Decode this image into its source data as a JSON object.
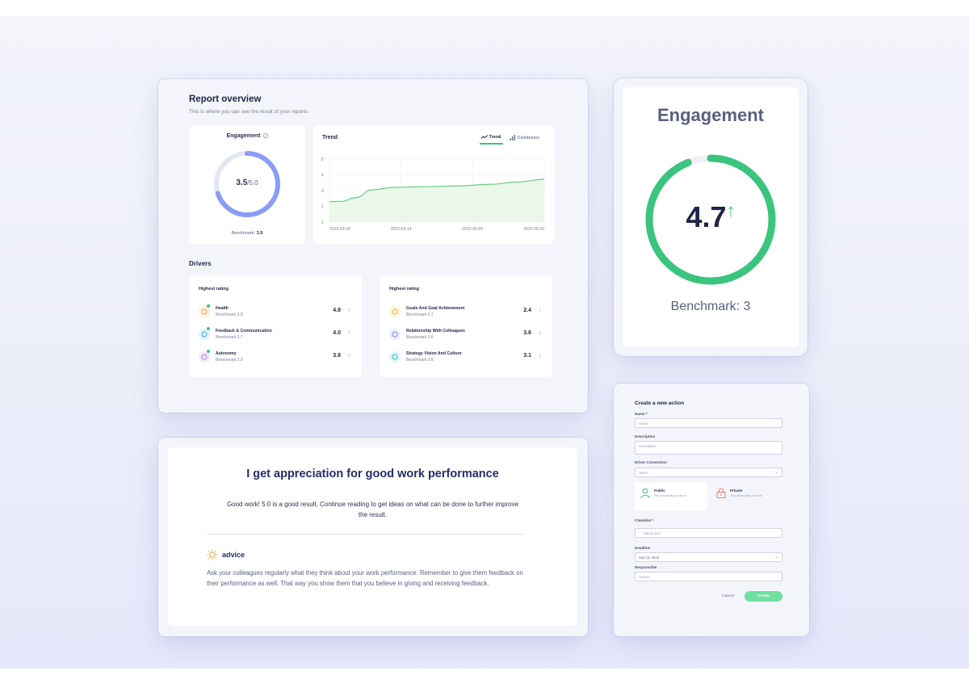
{
  "report": {
    "title": "Report overview",
    "subtitle": "This is where you can see the result of your reports",
    "engagement": {
      "title": "Engagement",
      "value": "3.5",
      "max": "/5.0",
      "benchmark_label": "Benchmark:",
      "benchmark_value": "3.9",
      "ring_fraction": 0.7,
      "ring_color": "#8b9cf7",
      "track_color": "#e4e7f2"
    },
    "trend": {
      "title": "Trend",
      "tabs": [
        {
          "label": "Trend",
          "icon": "trend-line-icon",
          "active": true
        },
        {
          "label": "Distribution",
          "icon": "bar-chart-icon",
          "active": false
        }
      ]
    },
    "drivers_title": "Drivers",
    "drivers": [
      {
        "heading": "Highest rating",
        "items": [
          {
            "name": "Health",
            "benchmark": "Benchmark 3.8",
            "score": "4.8",
            "direction": "up",
            "icon": "heart-icon",
            "color": "#f6a14a",
            "bg": "#fff0e0"
          },
          {
            "name": "Feedback & Communication",
            "benchmark": "Benchmark 3.7",
            "score": "4.0",
            "direction": "up",
            "icon": "chat-icon",
            "color": "#3fa9d6",
            "bg": "#e2f3fb"
          },
          {
            "name": "Autonomy",
            "benchmark": "Benchmark 3.9",
            "score": "3.8",
            "direction": "up",
            "icon": "star-burst-icon",
            "color": "#a97cf0",
            "bg": "#f1eafd"
          }
        ]
      },
      {
        "heading": "Highest rating",
        "items": [
          {
            "name": "Goals And Goal Achievement",
            "benchmark": "Benchmark 3.7",
            "score": "2.4",
            "direction": "down",
            "icon": "trophy-icon",
            "color": "#f2b531",
            "bg": "#fff6dc"
          },
          {
            "name": "Relationship With Colleagues",
            "benchmark": "Benchmark 3.6",
            "score": "3.6",
            "direction": "down",
            "icon": "people-icon",
            "color": "#7c8cf2",
            "bg": "#eceffd"
          },
          {
            "name": "Strategy Vision And Culture",
            "benchmark": "Benchmark 3.8",
            "score": "3.1",
            "direction": "down",
            "icon": "lighthouse-icon",
            "color": "#3fb8c8",
            "bg": "#e0f6f8"
          }
        ]
      }
    ],
    "arrows": {
      "up": "↑",
      "down": "↓"
    }
  },
  "chart_data": {
    "type": "area",
    "title": "Trend",
    "x": [
      "2022-03-24",
      "2022-04-14",
      "2022-05-05",
      "2022-05-23"
    ],
    "x_ticks": [
      "2022-03-24",
      "2022-04-14",
      "2022-05-05",
      "2022-05-23"
    ],
    "series": [
      {
        "values": [
          [
            0.0,
            2.3
          ],
          [
            0.06,
            2.32
          ],
          [
            0.12,
            2.55
          ],
          [
            0.2,
            3.05
          ],
          [
            0.3,
            3.2
          ],
          [
            0.45,
            3.25
          ],
          [
            0.6,
            3.3
          ],
          [
            0.75,
            3.4
          ],
          [
            0.88,
            3.55
          ],
          [
            1.0,
            3.72
          ]
        ]
      }
    ],
    "ylim": [
      1,
      5
    ],
    "y_ticks": [
      1,
      2,
      3,
      4,
      5
    ],
    "grid": true,
    "line_color": "#59c97a",
    "fill_color": "#e6f6e3"
  },
  "engagement_big": {
    "title": "Engagement",
    "value": "4.7",
    "arrow": "↑",
    "benchmark": "Benchmark: 3",
    "ring_fraction": 0.94,
    "ring_color": "#3ac47d",
    "track_color": "#f0f1f6"
  },
  "statement": {
    "title": "I get appreciation for good work performance",
    "description": "Good work! 5.0 is a good result. Continue reading to get ideas on what can be done to further improve the result.",
    "advice_label": "advice",
    "advice_icon": "lightbulb-icon",
    "advice_text": "Ask your colleagues regularly what they think about your work performance. Remember to give them feedback on their performance as well. That way you show them that you believe in giving and receiving feedback."
  },
  "action_form": {
    "title": "Create a new action",
    "name_label": "Name *",
    "name_placeholder": "Name",
    "description_label": "Description",
    "description_placeholder": "Description",
    "driver_label": "Driver Connection",
    "driver_value": "Select",
    "visibility": [
      {
        "name": "Public",
        "sub": "Text depending on level",
        "icon": "user-icon",
        "color": "#3ac47d",
        "selected": true
      },
      {
        "name": "Private",
        "sub": "Text depending on level",
        "icon": "lock-icon",
        "color": "#ee7a6a",
        "selected": false
      }
    ],
    "checklist_label": "Checklist *",
    "checklist_placeholder": "Add an item",
    "deadline_label": "Deadline",
    "deadline_value": "Sep 15, 2019",
    "responsible_label": "Responsible",
    "responsible_placeholder": "Search...",
    "cancel_label": "Cancel",
    "create_label": "Create"
  }
}
